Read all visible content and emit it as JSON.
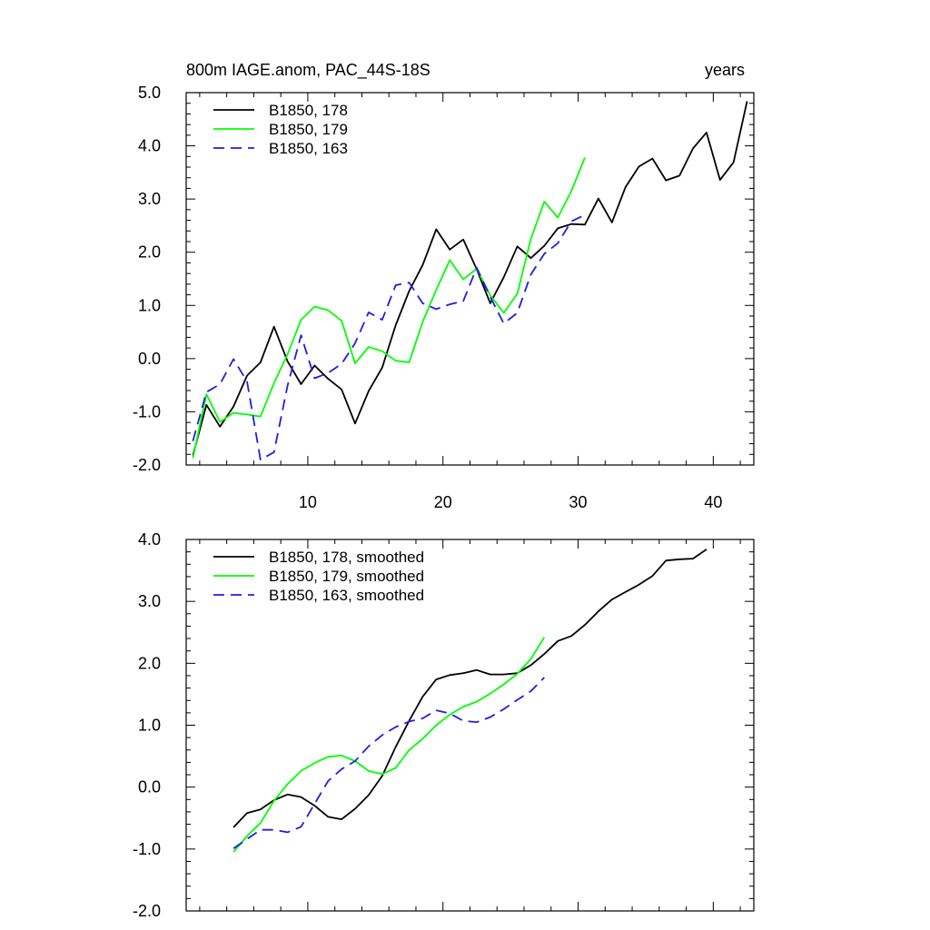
{
  "chart_data": [
    {
      "type": "line",
      "title": "800m IAGE.anom, PAC_44S-18S",
      "subtitle_right": "years",
      "xlabel": "",
      "ylabel": "",
      "xlim": [
        1,
        43
      ],
      "ylim": [
        -2.0,
        5.0
      ],
      "y_ticks": [
        -2.0,
        -1.0,
        0.0,
        1.0,
        2.0,
        3.0,
        4.0,
        5.0
      ],
      "y_tick_labels": [
        "-2.0",
        "-1.0",
        "0.0",
        "1.0",
        "2.0",
        "3.0",
        "4.0",
        "5.0"
      ],
      "x_ticks": [
        10,
        20,
        30,
        40
      ],
      "x_tick_labels": [
        "10",
        "20",
        "30",
        "40"
      ],
      "legend_position": "top-left",
      "series": [
        {
          "name": "B1850, 178",
          "color": "#000000",
          "dash": "solid",
          "x": [
            1.5,
            2.5,
            3.5,
            4.5,
            5.5,
            6.5,
            7.5,
            8.5,
            9.5,
            10.5,
            11.5,
            12.5,
            13.5,
            14.5,
            15.5,
            16.5,
            17.5,
            18.5,
            19.5,
            20.5,
            21.5,
            22.5,
            23.5,
            24.5,
            25.5,
            26.5,
            27.5,
            28.5,
            29.5,
            30.5,
            31.5,
            32.5,
            33.5,
            34.5,
            35.5,
            36.5,
            37.5,
            38.5,
            39.5,
            40.5,
            41.5,
            42.5
          ],
          "values": [
            -1.82,
            -0.87,
            -1.28,
            -0.9,
            -0.32,
            -0.07,
            0.6,
            -0.05,
            -0.48,
            -0.13,
            -0.38,
            -0.58,
            -1.22,
            -0.61,
            -0.17,
            0.63,
            1.27,
            1.76,
            2.43,
            2.05,
            2.24,
            1.68,
            1.04,
            1.53,
            2.11,
            1.89,
            2.12,
            2.45,
            2.53,
            2.52,
            3.01,
            2.56,
            3.22,
            3.61,
            3.76,
            3.35,
            3.44,
            3.95,
            4.25,
            3.36,
            3.69,
            4.84
          ]
        },
        {
          "name": "B1850, 179",
          "color": "#00ff00",
          "dash": "solid",
          "x": [
            1.5,
            2.5,
            3.5,
            4.5,
            5.5,
            6.5,
            7.5,
            8.5,
            9.5,
            10.5,
            11.5,
            12.5,
            13.5,
            14.5,
            15.5,
            16.5,
            17.5,
            18.5,
            19.5,
            20.5,
            21.5,
            22.5,
            23.5,
            24.5,
            25.5,
            26.5,
            27.5,
            28.5,
            29.5,
            30.5
          ],
          "values": [
            -1.87,
            -0.67,
            -1.19,
            -1.02,
            -1.05,
            -1.09,
            -0.46,
            0.08,
            0.73,
            0.98,
            0.91,
            0.71,
            -0.09,
            0.22,
            0.14,
            -0.04,
            -0.07,
            0.69,
            1.29,
            1.85,
            1.49,
            1.69,
            1.19,
            0.86,
            1.22,
            2.25,
            2.95,
            2.65,
            3.15,
            3.78
          ]
        },
        {
          "name": "B1850, 163",
          "color": "#1e1ee6",
          "dash": "dashed",
          "x": [
            1.5,
            2.5,
            3.5,
            4.5,
            5.5,
            6.5,
            7.5,
            8.5,
            9.5,
            10.5,
            11.5,
            12.5,
            13.5,
            14.5,
            15.5,
            16.5,
            17.5,
            18.5,
            19.5,
            20.5,
            21.5,
            22.5,
            23.5,
            24.5,
            25.5,
            26.5,
            27.5,
            28.5,
            29.5,
            30.5
          ],
          "values": [
            -1.55,
            -0.63,
            -0.48,
            -0.01,
            -0.43,
            -1.9,
            -1.76,
            -0.51,
            0.44,
            -0.37,
            -0.27,
            -0.1,
            0.29,
            0.87,
            0.73,
            1.38,
            1.43,
            1.04,
            0.93,
            1.02,
            1.08,
            1.71,
            1.16,
            0.66,
            0.86,
            1.58,
            1.97,
            2.17,
            2.58,
            2.7
          ]
        }
      ]
    },
    {
      "type": "line",
      "title": "",
      "xlabel": "",
      "ylabel": "",
      "xlim": [
        1,
        43
      ],
      "ylim": [
        -2.0,
        4.0
      ],
      "y_ticks": [
        -2.0,
        -1.0,
        0.0,
        1.0,
        2.0,
        3.0,
        4.0
      ],
      "y_tick_labels": [
        "-2.0",
        "-1.0",
        "0.0",
        "1.0",
        "2.0",
        "3.0",
        "4.0"
      ],
      "x_ticks": [
        10,
        20,
        30,
        40
      ],
      "x_tick_labels": [],
      "legend_position": "top-left",
      "series": [
        {
          "name": "B1850, 178, smoothed",
          "color": "#000000",
          "dash": "solid",
          "x": [
            4.5,
            5.5,
            6.5,
            7.5,
            8.5,
            9.5,
            10.5,
            11.5,
            12.5,
            13.5,
            14.5,
            15.5,
            16.5,
            17.5,
            18.5,
            19.5,
            20.5,
            21.5,
            22.5,
            23.5,
            24.5,
            25.5,
            26.5,
            27.5,
            28.5,
            29.5,
            30.5,
            31.5,
            32.5,
            33.5,
            34.5,
            35.5,
            36.5,
            37.5,
            38.5,
            39.5
          ],
          "values": [
            -0.65,
            -0.42,
            -0.36,
            -0.21,
            -0.12,
            -0.16,
            -0.3,
            -0.48,
            -0.52,
            -0.35,
            -0.13,
            0.18,
            0.65,
            1.07,
            1.46,
            1.74,
            1.81,
            1.84,
            1.89,
            1.82,
            1.82,
            1.84,
            1.97,
            2.15,
            2.36,
            2.44,
            2.62,
            2.84,
            3.03,
            3.15,
            3.27,
            3.41,
            3.66,
            3.68,
            3.69,
            3.84
          ]
        },
        {
          "name": "B1850, 179, smoothed",
          "color": "#00ff00",
          "dash": "solid",
          "x": [
            4.5,
            5.5,
            6.5,
            7.5,
            8.5,
            9.5,
            10.5,
            11.5,
            12.5,
            13.5,
            14.5,
            15.5,
            16.5,
            17.5,
            18.5,
            19.5,
            20.5,
            21.5,
            22.5,
            23.5,
            24.5,
            25.5,
            26.5,
            27.5
          ],
          "values": [
            -1.05,
            -0.79,
            -0.58,
            -0.22,
            0.05,
            0.26,
            0.39,
            0.49,
            0.51,
            0.42,
            0.26,
            0.21,
            0.31,
            0.6,
            0.78,
            1.0,
            1.17,
            1.3,
            1.38,
            1.51,
            1.66,
            1.83,
            2.07,
            2.42
          ]
        },
        {
          "name": "B1850, 163, smoothed",
          "color": "#1e1ee6",
          "dash": "dashed",
          "x": [
            4.5,
            5.5,
            6.5,
            7.5,
            8.5,
            9.5,
            10.5,
            11.5,
            12.5,
            13.5,
            14.5,
            15.5,
            16.5,
            17.5,
            18.5,
            19.5,
            20.5,
            21.5,
            22.5,
            23.5,
            24.5,
            25.5,
            26.5,
            27.5
          ],
          "values": [
            -0.99,
            -0.84,
            -0.69,
            -0.69,
            -0.73,
            -0.64,
            -0.27,
            0.1,
            0.29,
            0.42,
            0.66,
            0.84,
            0.97,
            1.06,
            1.11,
            1.24,
            1.19,
            1.07,
            1.05,
            1.13,
            1.26,
            1.41,
            1.55,
            1.77
          ]
        }
      ]
    }
  ]
}
